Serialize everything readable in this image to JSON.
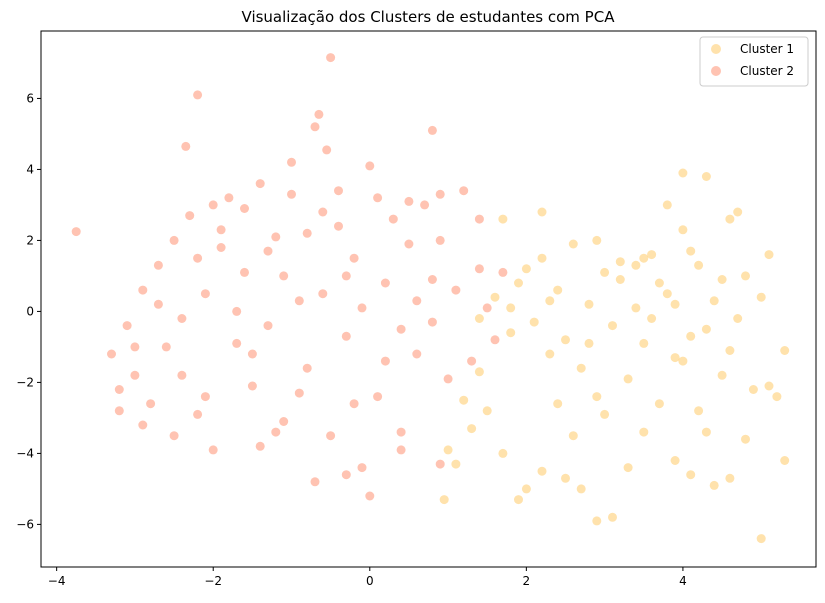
{
  "chart_data": {
    "type": "scatter",
    "title": "Visualização dos Clusters de estudantes com PCA",
    "xlabel": "",
    "ylabel": "",
    "xlim": [
      -4.2,
      5.7
    ],
    "ylim": [
      -7.2,
      7.9
    ],
    "xticks": [
      -4,
      -2,
      0,
      2,
      4
    ],
    "yticks": [
      -6,
      -4,
      -2,
      0,
      2,
      4,
      6
    ],
    "grid": false,
    "legend_position": "top-right",
    "marker_opacity": 0.55,
    "series": [
      {
        "name": "Cluster 1",
        "color": "#FFCA68",
        "points": [
          [
            1.4,
            -0.2
          ],
          [
            1.6,
            0.4
          ],
          [
            1.8,
            -0.6
          ],
          [
            1.9,
            0.8
          ],
          [
            2.1,
            -0.3
          ],
          [
            2.2,
            1.5
          ],
          [
            2.3,
            -1.2
          ],
          [
            2.4,
            0.6
          ],
          [
            2.5,
            -0.8
          ],
          [
            2.6,
            1.9
          ],
          [
            2.7,
            -1.6
          ],
          [
            2.8,
            0.2
          ],
          [
            2.9,
            -2.4
          ],
          [
            3.0,
            1.1
          ],
          [
            3.1,
            -0.4
          ],
          [
            3.2,
            0.9
          ],
          [
            3.3,
            -1.9
          ],
          [
            3.4,
            0.1
          ],
          [
            3.5,
            -0.9
          ],
          [
            3.6,
            1.6
          ],
          [
            3.7,
            -2.6
          ],
          [
            3.8,
            0.5
          ],
          [
            3.9,
            -1.3
          ],
          [
            4.0,
            2.3
          ],
          [
            4.1,
            -0.7
          ],
          [
            4.2,
            1.3
          ],
          [
            4.3,
            -3.4
          ],
          [
            4.4,
            0.3
          ],
          [
            4.5,
            -1.8
          ],
          [
            4.6,
            2.6
          ],
          [
            4.7,
            -0.2
          ],
          [
            4.8,
            1.0
          ],
          [
            4.9,
            -2.2
          ],
          [
            5.0,
            0.4
          ],
          [
            1.5,
            -2.8
          ],
          [
            1.7,
            -4.0
          ],
          [
            1.9,
            -5.3
          ],
          [
            2.0,
            -5.0
          ],
          [
            2.2,
            -4.5
          ],
          [
            2.5,
            -4.7
          ],
          [
            2.7,
            -5.0
          ],
          [
            2.9,
            -5.9
          ],
          [
            3.1,
            -5.8
          ],
          [
            3.3,
            -4.4
          ],
          [
            3.5,
            -3.4
          ],
          [
            3.9,
            -4.2
          ],
          [
            4.1,
            -4.6
          ],
          [
            4.4,
            -4.9
          ],
          [
            4.6,
            -4.7
          ],
          [
            5.0,
            -6.4
          ],
          [
            5.1,
            -2.1
          ],
          [
            5.2,
            -2.4
          ],
          [
            5.3,
            -1.1
          ],
          [
            5.1,
            1.6
          ],
          [
            4.7,
            2.8
          ],
          [
            4.3,
            3.8
          ],
          [
            4.0,
            3.9
          ],
          [
            3.8,
            3.0
          ],
          [
            3.5,
            1.5
          ],
          [
            2.9,
            2.0
          ],
          [
            2.2,
            2.8
          ],
          [
            1.7,
            2.6
          ],
          [
            2.0,
            1.2
          ],
          [
            2.4,
            -2.6
          ],
          [
            2.6,
            -3.5
          ],
          [
            3.0,
            -2.9
          ],
          [
            3.2,
            1.4
          ],
          [
            3.6,
            -0.2
          ],
          [
            4.2,
            -2.8
          ],
          [
            4.5,
            0.9
          ],
          [
            4.8,
            -3.6
          ],
          [
            5.3,
            -4.2
          ],
          [
            0.95,
            -5.3
          ],
          [
            1.0,
            -3.9
          ],
          [
            1.1,
            -4.3
          ],
          [
            1.2,
            -2.5
          ],
          [
            1.3,
            -3.3
          ],
          [
            1.4,
            -1.7
          ],
          [
            3.7,
            0.8
          ],
          [
            4.1,
            1.7
          ],
          [
            4.3,
            -0.5
          ],
          [
            3.9,
            0.2
          ],
          [
            4.6,
            -1.1
          ],
          [
            4.0,
            -1.4
          ],
          [
            3.4,
            1.3
          ],
          [
            2.8,
            -0.9
          ],
          [
            2.3,
            0.3
          ],
          [
            1.8,
            0.1
          ]
        ]
      },
      {
        "name": "Cluster 2",
        "color": "#FF9273",
        "points": [
          [
            -3.75,
            2.25
          ],
          [
            -3.3,
            -1.2
          ],
          [
            -3.2,
            -2.2
          ],
          [
            -3.1,
            -0.4
          ],
          [
            -3.0,
            -1.8
          ],
          [
            -2.9,
            0.6
          ],
          [
            -2.8,
            -2.6
          ],
          [
            -2.7,
            1.3
          ],
          [
            -2.6,
            -1.0
          ],
          [
            -2.5,
            2.0
          ],
          [
            -2.4,
            -0.2
          ],
          [
            -2.3,
            2.7
          ],
          [
            -2.2,
            -2.9
          ],
          [
            -2.1,
            0.5
          ],
          [
            -2.0,
            -3.9
          ],
          [
            -1.9,
            1.8
          ],
          [
            -1.8,
            3.2
          ],
          [
            -1.7,
            -0.9
          ],
          [
            -1.6,
            1.1
          ],
          [
            -1.5,
            -2.1
          ],
          [
            -1.4,
            3.6
          ],
          [
            -1.3,
            -0.4
          ],
          [
            -1.2,
            2.1
          ],
          [
            -1.1,
            -3.1
          ],
          [
            -1.0,
            4.2
          ],
          [
            -0.9,
            0.3
          ],
          [
            -0.8,
            -1.6
          ],
          [
            -0.7,
            5.2
          ],
          [
            -0.6,
            2.8
          ],
          [
            -0.5,
            -3.5
          ],
          [
            -0.4,
            3.4
          ],
          [
            -0.3,
            -0.7
          ],
          [
            -0.2,
            1.5
          ],
          [
            -0.1,
            -4.4
          ],
          [
            0.0,
            4.1
          ],
          [
            0.1,
            -2.4
          ],
          [
            0.2,
            0.8
          ],
          [
            0.3,
            2.6
          ],
          [
            0.4,
            -3.4
          ],
          [
            0.5,
            1.9
          ],
          [
            0.6,
            -1.2
          ],
          [
            0.7,
            3.0
          ],
          [
            0.8,
            -0.3
          ],
          [
            0.9,
            2.0
          ],
          [
            1.0,
            -1.9
          ],
          [
            1.1,
            0.6
          ],
          [
            1.2,
            3.4
          ],
          [
            1.3,
            -1.4
          ],
          [
            1.4,
            1.2
          ],
          [
            1.5,
            0.1
          ],
          [
            1.6,
            -0.8
          ],
          [
            -2.2,
            6.1
          ],
          [
            -2.35,
            4.65
          ],
          [
            -0.5,
            7.15
          ],
          [
            -0.65,
            5.55
          ],
          [
            -0.55,
            4.55
          ],
          [
            0.8,
            5.1
          ],
          [
            -0.7,
            -4.8
          ],
          [
            0.0,
            -5.2
          ],
          [
            -1.4,
            -3.8
          ],
          [
            -2.9,
            -3.2
          ],
          [
            -3.2,
            -2.8
          ],
          [
            -2.5,
            -3.5
          ],
          [
            -1.2,
            -3.4
          ],
          [
            -0.3,
            -4.6
          ],
          [
            0.4,
            -3.9
          ],
          [
            0.9,
            -4.3
          ],
          [
            1.4,
            2.6
          ],
          [
            1.7,
            1.1
          ],
          [
            -2.0,
            3.0
          ],
          [
            -1.9,
            2.3
          ],
          [
            -1.6,
            2.9
          ],
          [
            -1.0,
            3.3
          ],
          [
            -0.8,
            2.2
          ],
          [
            -0.4,
            2.4
          ],
          [
            0.1,
            3.2
          ],
          [
            0.5,
            3.1
          ],
          [
            0.9,
            3.3
          ],
          [
            -0.2,
            -2.6
          ],
          [
            -0.9,
            -2.3
          ],
          [
            -1.5,
            -1.2
          ],
          [
            -1.1,
            1.0
          ],
          [
            -0.6,
            0.5
          ],
          [
            -0.1,
            0.1
          ],
          [
            0.4,
            -0.5
          ],
          [
            0.8,
            0.9
          ],
          [
            -1.7,
            0.0
          ],
          [
            -2.2,
            1.5
          ],
          [
            -2.7,
            0.2
          ],
          [
            -3.0,
            -1.0
          ],
          [
            -2.4,
            -1.8
          ],
          [
            -2.1,
            -2.4
          ],
          [
            -1.3,
            1.7
          ],
          [
            -0.3,
            1.0
          ],
          [
            0.2,
            -1.4
          ],
          [
            0.6,
            0.3
          ]
        ]
      }
    ]
  }
}
